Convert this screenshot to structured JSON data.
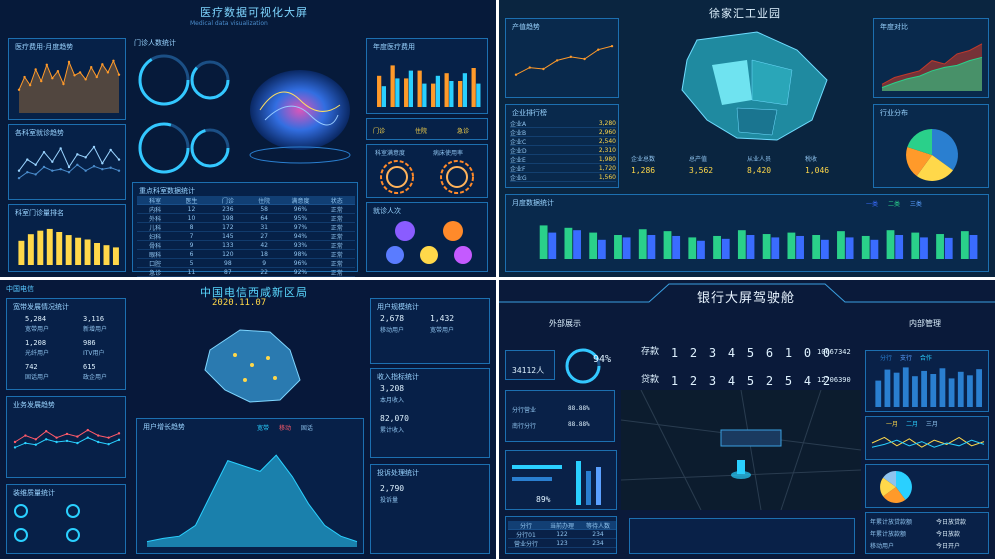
{
  "q1": {
    "title": "医疗数据可视化大屏",
    "subtitle": "Medical data visualization",
    "panels": {
      "left_top": "医疗费用·月度趋势",
      "left_mid": "各科室就诊趋势",
      "left_bot": "科室门诊量排名",
      "center_top": "门诊人数统计",
      "right_top": "年度医疗费用",
      "right_mid_a": "门诊",
      "right_mid_b": "住院",
      "right_mid_c": "急诊",
      "right_ring_a": "科室满意度",
      "right_ring_b": "病床使用率",
      "right_bot": "就诊人次",
      "table_title": "重点科室数据统计"
    },
    "table": {
      "headers": [
        "科室",
        "医生",
        "门诊",
        "住院",
        "满意度",
        "状态"
      ],
      "rows": [
        [
          "内科",
          "12",
          "236",
          "58",
          "96%",
          "正常"
        ],
        [
          "外科",
          "10",
          "198",
          "64",
          "95%",
          "正常"
        ],
        [
          "儿科",
          "8",
          "172",
          "31",
          "97%",
          "正常"
        ],
        [
          "妇科",
          "7",
          "145",
          "27",
          "94%",
          "正常"
        ],
        [
          "骨科",
          "9",
          "133",
          "42",
          "93%",
          "正常"
        ],
        [
          "眼科",
          "6",
          "120",
          "18",
          "98%",
          "正常"
        ],
        [
          "口腔",
          "5",
          "98",
          "9",
          "96%",
          "正常"
        ],
        [
          "急诊",
          "11",
          "87",
          "22",
          "92%",
          "正常"
        ]
      ]
    }
  },
  "q2": {
    "title": "徐家汇工业园",
    "panels": {
      "left_top": "产值趋势",
      "left_list": "企业排行榜",
      "right_top": "年度对比",
      "right_mid": "行业分布",
      "bottom": "月度数据统计"
    },
    "list": [
      {
        "name": "企业A",
        "value": "3,280"
      },
      {
        "name": "企业B",
        "value": "2,960"
      },
      {
        "name": "企业C",
        "value": "2,540"
      },
      {
        "name": "企业D",
        "value": "2,310"
      },
      {
        "name": "企业E",
        "value": "1,980"
      },
      {
        "name": "企业F",
        "value": "1,720"
      },
      {
        "name": "企业G",
        "value": "1,560"
      }
    ],
    "stats": [
      {
        "label": "企业总数",
        "value": "1,286"
      },
      {
        "label": "总产值",
        "value": "3,562"
      },
      {
        "label": "从业人员",
        "value": "8,420"
      },
      {
        "label": "税收",
        "value": "1,046"
      }
    ],
    "legend": [
      "一类",
      "二类",
      "三类"
    ]
  },
  "q3": {
    "title": "中国电信西咸新区局",
    "clock": "2020.11.07",
    "brand": "中国电信",
    "panels": {
      "left_top": "宽带发展情况统计",
      "left_mid": "业务发展趋势",
      "left_bot": "装维质量统计",
      "right_top": "用户规模统计",
      "right_mid": "收入指标统计",
      "right_bot": "投诉处理统计",
      "bottom": "用户增长趋势"
    },
    "left_stats": [
      {
        "value": "5,284",
        "label": "宽带用户"
      },
      {
        "value": "3,116",
        "label": "新增用户"
      },
      {
        "value": "1,208",
        "label": "光纤用户"
      },
      {
        "value": "986",
        "label": "ITV用户"
      },
      {
        "value": "742",
        "label": "固话用户"
      },
      {
        "value": "615",
        "label": "政企用户"
      }
    ],
    "right_stats": [
      {
        "value": "2,678",
        "label": "移动用户"
      },
      {
        "value": "1,432",
        "label": "宽带用户"
      },
      {
        "value": "3,208",
        "label": "本月收入"
      },
      {
        "value": "82,070",
        "label": "累计收入"
      },
      {
        "value": "2,790",
        "label": "投诉量"
      }
    ],
    "legend": [
      "宽带",
      "移动",
      "固话"
    ]
  },
  "q4": {
    "title": "银行大屏驾驶舱",
    "left_section": "外部展示",
    "right_section": "内部管理",
    "customers": "34112人",
    "percent": "94%",
    "percent2": "89%",
    "deposit_label": "存款",
    "loan_label": "贷款",
    "deposit_digits": [
      "1",
      "2",
      "3",
      "4",
      "5",
      "6",
      "1",
      "0",
      "0"
    ],
    "loan_digits": [
      "1",
      "2",
      "3",
      "4",
      "5",
      "2",
      "5",
      "4",
      "2"
    ],
    "deposit_value": "10667342",
    "loan_value": "12706390",
    "branch_rows": [
      {
        "name": "分行营业",
        "rate": "88.88%"
      },
      {
        "name": "南行分行",
        "rate": "88.88%"
      }
    ],
    "bottom_table": {
      "headers": [
        "分行",
        "当前办理",
        "等待人数"
      ],
      "rows": [
        [
          "分行01",
          "122",
          "234"
        ],
        [
          "营业分行",
          "123",
          "234"
        ]
      ]
    },
    "right_rows": [
      {
        "label": "年累计放贷款额",
        "value": "今日放贷款"
      },
      {
        "label": "年累计放款额",
        "value": "今日放款"
      },
      {
        "label": "移动用户",
        "value": "今日开户"
      }
    ],
    "legend": [
      "分行",
      "支行",
      "合作"
    ],
    "line_legend": [
      "一月",
      "二月",
      "三月"
    ]
  },
  "chart_data": [
    {
      "type": "area",
      "series": [
        {
          "values": [
            40,
            62,
            48,
            75,
            55,
            83,
            60,
            72,
            50,
            88,
            65,
            70,
            58,
            79,
            62,
            84,
            70,
            90,
            66
          ]
        }
      ],
      "ylim": [
        0,
        100
      ]
    },
    {
      "type": "line",
      "series": [
        {
          "values": [
            30,
            45,
            38,
            55,
            42,
            60,
            35,
            52,
            48,
            62,
            40,
            58,
            45
          ]
        },
        {
          "values": [
            20,
            28,
            25,
            35,
            30,
            32,
            28,
            38,
            30,
            36,
            32,
            34,
            30
          ]
        }
      ],
      "ylim": [
        0,
        70
      ]
    },
    {
      "type": "bar",
      "values": [
        55,
        70,
        78,
        82,
        75,
        68,
        62,
        58,
        50,
        45,
        40
      ],
      "ylim": [
        0,
        100
      ]
    },
    {
      "type": "bar",
      "series": [
        {
          "values": [
            60,
            80,
            55,
            70,
            45,
            65,
            50,
            75
          ]
        },
        {
          "values": [
            40,
            55,
            70,
            45,
            60,
            50,
            65,
            45
          ]
        }
      ],
      "ylim": [
        0,
        100
      ]
    },
    {
      "type": "line",
      "values": [
        20,
        30,
        28,
        40,
        45,
        42,
        55,
        60
      ],
      "ylim": [
        0,
        70
      ]
    },
    {
      "type": "area",
      "series": [
        {
          "values": [
            10,
            20,
            25,
            30,
            45,
            40,
            55,
            60,
            70
          ]
        },
        {
          "values": [
            5,
            12,
            18,
            22,
            30,
            35,
            38,
            45,
            50
          ]
        }
      ],
      "ylim": [
        0,
        80
      ]
    },
    {
      "type": "pie",
      "values": [
        35,
        25,
        20,
        20
      ]
    },
    {
      "type": "bar",
      "series": [
        {
          "values": [
            70,
            65,
            55,
            50,
            62,
            58,
            45,
            48,
            60,
            52,
            55,
            50,
            58,
            48,
            60,
            55,
            52,
            58
          ]
        },
        {
          "values": [
            55,
            60,
            40,
            45,
            50,
            48,
            38,
            42,
            50,
            45,
            48,
            40,
            45,
            40,
            50,
            45,
            44,
            50
          ]
        }
      ],
      "ylim": [
        0,
        100
      ]
    },
    {
      "type": "line",
      "series": [
        {
          "values": [
            50,
            62,
            55,
            70,
            58,
            65,
            60,
            72,
            62,
            58,
            66
          ]
        },
        {
          "values": [
            40,
            48,
            45,
            55,
            50,
            52,
            48,
            58,
            50,
            46,
            54
          ]
        }
      ],
      "ylim": [
        0,
        100
      ]
    },
    {
      "type": "area",
      "values": [
        5,
        8,
        10,
        20,
        50,
        80,
        75,
        70,
        85,
        65,
        40,
        20,
        10,
        5
      ],
      "ylim": [
        0,
        100
      ]
    },
    {
      "type": "bar",
      "values": [
        60,
        85,
        78,
        90,
        70,
        82,
        75,
        88,
        65,
        80,
        72,
        86
      ],
      "ylim": [
        0,
        100
      ]
    },
    {
      "type": "line",
      "series": [
        {
          "values": [
            50,
            70,
            40,
            65,
            35,
            60,
            45,
            70,
            40,
            55
          ]
        },
        {
          "values": [
            35,
            45,
            60,
            40,
            55,
            35,
            50,
            40,
            60,
            45
          ]
        }
      ],
      "ylim": [
        0,
        100
      ]
    },
    {
      "type": "pie",
      "values": [
        40,
        25,
        20,
        15
      ]
    }
  ]
}
